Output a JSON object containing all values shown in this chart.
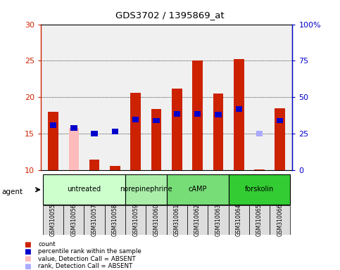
{
  "title": "GDS3702 / 1395869_at",
  "samples": [
    "GSM310055",
    "GSM310056",
    "GSM310057",
    "GSM310058",
    "GSM310059",
    "GSM310060",
    "GSM310061",
    "GSM310062",
    "GSM310063",
    "GSM310064",
    "GSM310065",
    "GSM310066"
  ],
  "bar_values": [
    18.0,
    15.8,
    11.4,
    10.6,
    20.6,
    18.4,
    21.2,
    25.0,
    20.5,
    25.2,
    10.1,
    18.5
  ],
  "bar_absent": [
    false,
    true,
    false,
    false,
    false,
    false,
    false,
    false,
    false,
    false,
    false,
    false
  ],
  "rank_values": [
    16.2,
    15.8,
    15.0,
    15.3,
    16.9,
    16.8,
    17.7,
    17.7,
    17.6,
    18.4,
    15.0,
    16.8
  ],
  "rank_absent": [
    false,
    false,
    false,
    false,
    false,
    false,
    false,
    false,
    false,
    false,
    true,
    false
  ],
  "ymin": 10,
  "ymax": 30,
  "yticks_left": [
    10,
    15,
    20,
    25,
    30
  ],
  "yticks_right_vals": [
    0,
    25,
    50,
    75,
    100
  ],
  "yticks_right_labels": [
    "0",
    "25",
    "50",
    "75",
    "100%"
  ],
  "grid_yticks": [
    15,
    20,
    25
  ],
  "groups": [
    {
      "label": "untreated",
      "indices": [
        0,
        1,
        2,
        3
      ],
      "color": "#ccffcc"
    },
    {
      "label": "norepinephrine",
      "indices": [
        4,
        5
      ],
      "color": "#aaeeaa"
    },
    {
      "label": "cAMP",
      "indices": [
        6,
        7,
        8
      ],
      "color": "#77dd77"
    },
    {
      "label": "forskolin",
      "indices": [
        9,
        10,
        11
      ],
      "color": "#33cc33"
    }
  ],
  "bar_color": "#cc2200",
  "bar_absent_color": "#ffbbbb",
  "rank_color": "#0000cc",
  "rank_absent_color": "#aaaaff",
  "bg_color": "#f0f0f0",
  "left_axis_color": "#cc2200",
  "right_axis_color": "#0000cc",
  "legend_items": [
    {
      "color": "#cc2200",
      "label": "count"
    },
    {
      "color": "#0000cc",
      "label": "percentile rank within the sample"
    },
    {
      "color": "#ffbbbb",
      "label": "value, Detection Call = ABSENT"
    },
    {
      "color": "#aaaaff",
      "label": "rank, Detection Call = ABSENT"
    }
  ]
}
